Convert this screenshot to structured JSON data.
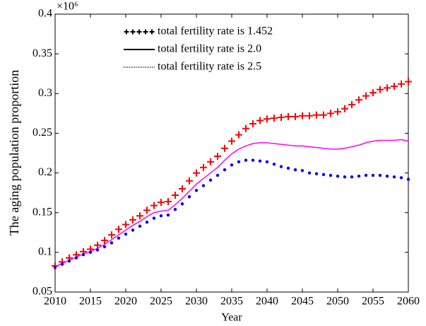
{
  "chart_data": {
    "type": "line",
    "multiplier": "×10⁶",
    "xlabel": "Year",
    "ylabel": "The aging population proportion",
    "x": [
      2010,
      2011,
      2012,
      2013,
      2014,
      2015,
      2016,
      2017,
      2018,
      2019,
      2020,
      2021,
      2022,
      2023,
      2024,
      2025,
      2026,
      2027,
      2028,
      2029,
      2030,
      2031,
      2032,
      2033,
      2034,
      2035,
      2036,
      2037,
      2038,
      2039,
      2040,
      2041,
      2042,
      2043,
      2044,
      2045,
      2046,
      2047,
      2048,
      2049,
      2050,
      2051,
      2052,
      2053,
      2054,
      2055,
      2056,
      2057,
      2058,
      2059,
      2060
    ],
    "xlim": [
      2010,
      2060
    ],
    "xticks": [
      2010,
      2015,
      2020,
      2025,
      2030,
      2035,
      2040,
      2045,
      2050,
      2055,
      2060
    ],
    "ylim": [
      0.05,
      0.4
    ],
    "yticks": [
      0.05,
      0.1,
      0.15,
      0.2,
      0.25,
      0.3,
      0.35,
      0.4
    ],
    "legend": "upper left",
    "series": [
      {
        "name": "total fertility rate is 1.452",
        "color": "#ff0000",
        "marker": "plus",
        "values": [
          0.083,
          0.088,
          0.093,
          0.097,
          0.101,
          0.104,
          0.109,
          0.115,
          0.122,
          0.129,
          0.135,
          0.141,
          0.146,
          0.153,
          0.159,
          0.163,
          0.164,
          0.172,
          0.18,
          0.19,
          0.2,
          0.207,
          0.214,
          0.221,
          0.231,
          0.24,
          0.248,
          0.256,
          0.262,
          0.266,
          0.268,
          0.269,
          0.27,
          0.271,
          0.271,
          0.272,
          0.272,
          0.273,
          0.273,
          0.275,
          0.277,
          0.281,
          0.286,
          0.292,
          0.297,
          0.301,
          0.305,
          0.307,
          0.309,
          0.312,
          0.315
        ]
      },
      {
        "name": "total fertility rate is 2.0",
        "color": "#ff00ff",
        "marker": "line",
        "values": [
          0.082,
          0.086,
          0.09,
          0.094,
          0.098,
          0.101,
          0.105,
          0.11,
          0.116,
          0.122,
          0.128,
          0.134,
          0.139,
          0.145,
          0.15,
          0.152,
          0.153,
          0.16,
          0.168,
          0.177,
          0.186,
          0.193,
          0.2,
          0.207,
          0.216,
          0.224,
          0.23,
          0.234,
          0.237,
          0.238,
          0.238,
          0.237,
          0.236,
          0.235,
          0.234,
          0.234,
          0.233,
          0.232,
          0.231,
          0.23,
          0.23,
          0.231,
          0.233,
          0.235,
          0.238,
          0.24,
          0.241,
          0.241,
          0.241,
          0.242,
          0.24
        ]
      },
      {
        "name": "total fertility rate is 2.5",
        "color": "#0000ff",
        "marker": "dot",
        "values": [
          0.081,
          0.085,
          0.089,
          0.093,
          0.097,
          0.1,
          0.103,
          0.107,
          0.112,
          0.118,
          0.123,
          0.128,
          0.133,
          0.138,
          0.143,
          0.146,
          0.147,
          0.154,
          0.161,
          0.17,
          0.178,
          0.184,
          0.191,
          0.197,
          0.204,
          0.21,
          0.214,
          0.216,
          0.216,
          0.215,
          0.214,
          0.211,
          0.208,
          0.206,
          0.204,
          0.203,
          0.2,
          0.199,
          0.198,
          0.197,
          0.196,
          0.195,
          0.195,
          0.196,
          0.197,
          0.197,
          0.197,
          0.196,
          0.195,
          0.194,
          0.192
        ]
      }
    ]
  }
}
